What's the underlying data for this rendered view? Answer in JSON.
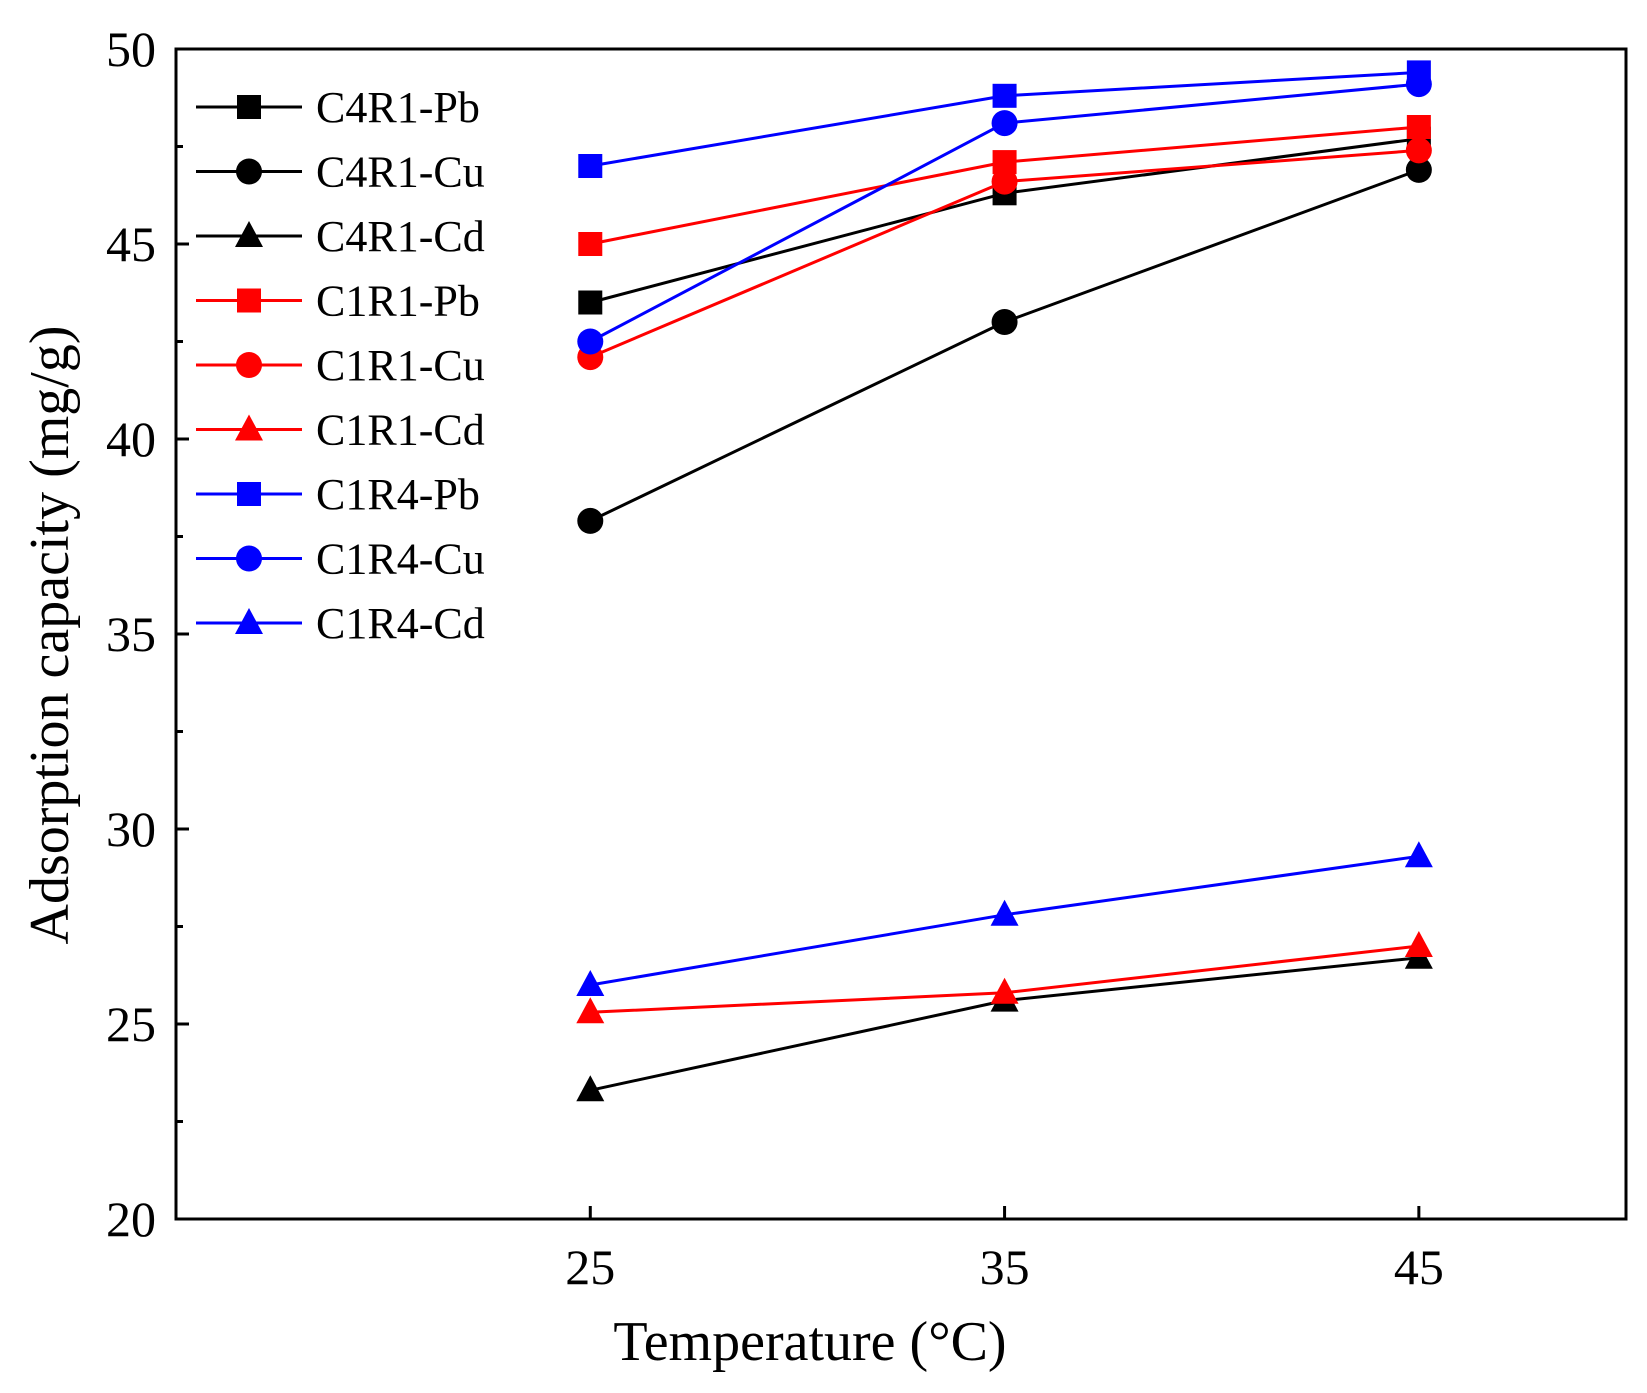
{
  "chart_data": {
    "type": "line",
    "title": "",
    "xlabel": "Temperature (°C)",
    "ylabel": "Adsorption capacity (mg/g)",
    "x": [
      25,
      35,
      45
    ],
    "xlim": [
      15,
      50
    ],
    "ylim": [
      20,
      50
    ],
    "xticks": [
      25,
      35,
      45
    ],
    "yticks": [
      20,
      25,
      30,
      35,
      40,
      45,
      50
    ],
    "grid": false,
    "legend_position": "top-left",
    "series": [
      {
        "name": "C4R1-Pb",
        "color": "#000000",
        "marker": "square",
        "values": [
          43.5,
          46.3,
          47.7
        ]
      },
      {
        "name": "C4R1-Cu",
        "color": "#000000",
        "marker": "circle",
        "values": [
          37.9,
          43.0,
          46.9
        ]
      },
      {
        "name": "C4R1-Cd",
        "color": "#000000",
        "marker": "triangle",
        "values": [
          23.3,
          25.6,
          26.7
        ]
      },
      {
        "name": "C1R1-Pb",
        "color": "#ff0000",
        "marker": "square",
        "values": [
          45.0,
          47.1,
          48.0
        ]
      },
      {
        "name": "C1R1-Cu",
        "color": "#ff0000",
        "marker": "circle",
        "values": [
          42.1,
          46.6,
          47.4
        ]
      },
      {
        "name": "C1R1-Cd",
        "color": "#ff0000",
        "marker": "triangle",
        "values": [
          25.3,
          25.8,
          27.0
        ]
      },
      {
        "name": "C1R4-Pb",
        "color": "#0000ff",
        "marker": "square",
        "values": [
          47.0,
          48.8,
          49.4
        ]
      },
      {
        "name": "C1R4-Cu",
        "color": "#0000ff",
        "marker": "circle",
        "values": [
          42.5,
          48.1,
          49.1
        ]
      },
      {
        "name": "C1R4-Cd",
        "color": "#0000ff",
        "marker": "triangle",
        "values": [
          26.0,
          27.8,
          29.3
        ]
      }
    ]
  }
}
